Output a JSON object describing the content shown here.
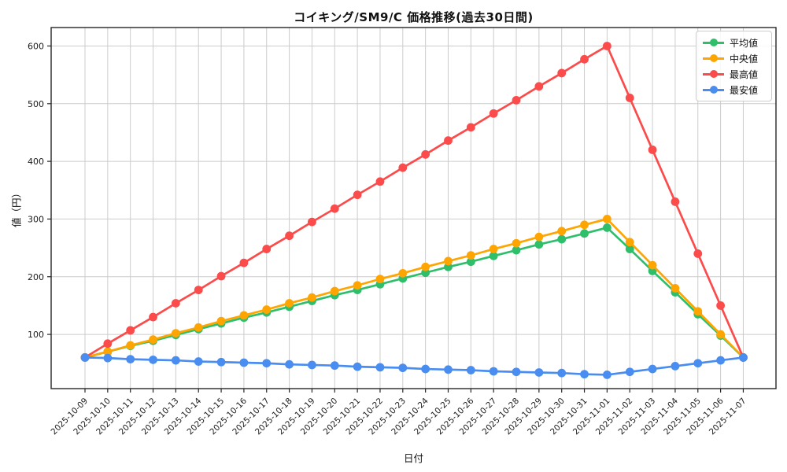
{
  "chart_data": {
    "type": "line",
    "title": "コイキング/SM9/C 価格推移(過去30日間)",
    "xlabel": "日付",
    "ylabel": "値（円）",
    "x": [
      "2025-10-09",
      "2025-10-10",
      "2025-10-11",
      "2025-10-12",
      "2025-10-13",
      "2025-10-14",
      "2025-10-15",
      "2025-10-16",
      "2025-10-17",
      "2025-10-18",
      "2025-10-19",
      "2025-10-20",
      "2025-10-21",
      "2025-10-22",
      "2025-10-23",
      "2025-10-24",
      "2025-10-25",
      "2025-10-26",
      "2025-10-27",
      "2025-10-28",
      "2025-10-29",
      "2025-10-30",
      "2025-10-31",
      "2025-11-01",
      "2025-11-02",
      "2025-11-03",
      "2025-11-04",
      "2025-11-05",
      "2025-11-06",
      "2025-11-07"
    ],
    "series": [
      {
        "key": "average",
        "name": "平均値",
        "color": "#2fbf6b",
        "values": [
          60,
          70,
          80,
          89,
          99,
          109,
          119,
          129,
          138,
          148,
          158,
          168,
          177,
          187,
          197,
          207,
          217,
          226,
          236,
          246,
          256,
          265,
          275,
          285,
          248,
          210,
          173,
          135,
          98,
          60
        ]
      },
      {
        "key": "median",
        "name": "中央値",
        "color": "#ffa502",
        "values": [
          60,
          70,
          81,
          91,
          102,
          112,
          123,
          133,
          143,
          154,
          164,
          175,
          185,
          196,
          206,
          217,
          227,
          237,
          248,
          258,
          269,
          279,
          290,
          300,
          260,
          220,
          180,
          140,
          100,
          60
        ]
      },
      {
        "key": "max",
        "name": "最高値",
        "color": "#fb4b4b",
        "values": [
          60,
          84,
          107,
          130,
          154,
          177,
          201,
          224,
          248,
          271,
          295,
          318,
          342,
          365,
          389,
          412,
          436,
          459,
          483,
          506,
          530,
          553,
          577,
          600,
          510,
          420,
          330,
          240,
          150,
          60
        ]
      },
      {
        "key": "min",
        "name": "最安値",
        "color": "#4a8df0",
        "values": [
          60,
          59,
          57,
          56,
          55,
          53,
          52,
          51,
          50,
          48,
          47,
          46,
          44,
          43,
          42,
          40,
          39,
          38,
          36,
          35,
          34,
          33,
          31,
          30,
          35,
          40,
          45,
          50,
          55,
          60
        ]
      }
    ],
    "yticks": [
      100,
      200,
      300,
      400,
      500,
      600
    ],
    "ylim": [
      6,
      632
    ],
    "grid": true,
    "legend_position": "upper-right",
    "colors": {
      "grid": "#cccccc",
      "axis": "#262626",
      "background": "#ffffff"
    }
  }
}
